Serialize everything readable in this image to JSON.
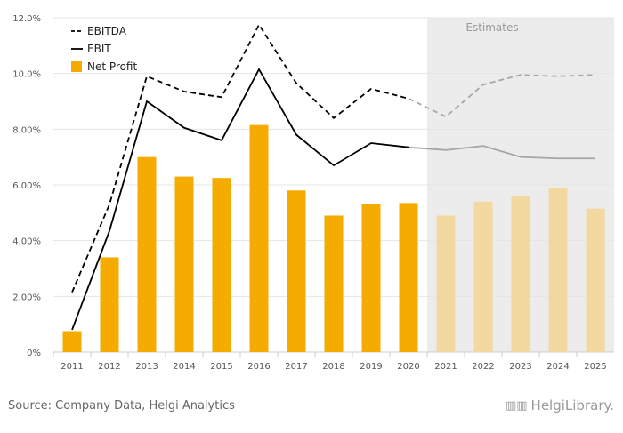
{
  "chart_data": {
    "type": "bar",
    "categories": [
      "2011",
      "2012",
      "2013",
      "2014",
      "2015",
      "2016",
      "2017",
      "2018",
      "2019",
      "2020",
      "2021",
      "2022",
      "2023",
      "2024",
      "2025"
    ],
    "estimate_from_index": 10,
    "estimates_label": "Estimates",
    "y_ticks": [
      {
        "value": 0,
        "label": "0%"
      },
      {
        "value": 2,
        "label": "2.00%"
      },
      {
        "value": 4,
        "label": "4.00%"
      },
      {
        "value": 6,
        "label": "6.00%"
      },
      {
        "value": 8,
        "label": "8.00%"
      },
      {
        "value": 10,
        "label": "10.0%"
      },
      {
        "value": 12,
        "label": "12.0%"
      }
    ],
    "ylim": [
      0,
      12
    ],
    "series": [
      {
        "name": "EBITDA",
        "kind": "line",
        "style": "dashed",
        "values": [
          2.15,
          5.3,
          9.9,
          9.35,
          9.15,
          11.75,
          9.65,
          8.4,
          9.45,
          9.1,
          8.45,
          9.6,
          9.95,
          9.9,
          9.95
        ]
      },
      {
        "name": "EBIT",
        "kind": "line",
        "style": "solid",
        "values": [
          0.8,
          4.35,
          9.0,
          8.05,
          7.6,
          10.15,
          7.8,
          6.7,
          7.5,
          7.35,
          7.25,
          7.4,
          7.0,
          6.95,
          6.95
        ]
      },
      {
        "name": "Net Profit",
        "kind": "bar",
        "values": [
          0.75,
          3.4,
          7.0,
          6.3,
          6.25,
          8.15,
          5.8,
          4.9,
          5.3,
          5.35,
          4.9,
          5.4,
          5.6,
          5.9,
          5.15
        ]
      }
    ],
    "legend": {
      "position": "top-left",
      "items": [
        "EBITDA",
        "EBIT",
        "Net Profit"
      ]
    },
    "grid": true,
    "colors": {
      "bar": "#f5ab00",
      "bar_estimate": "#f3d99f",
      "line": "#000000",
      "line_estimate": "#a6a6a6",
      "estimate_bg": "#ececec",
      "estimates_text": "#999999",
      "grid": "#e6e6e6",
      "axis_text": "#555555"
    }
  },
  "footer": {
    "source": "Source: Company Data, Helgi Analytics",
    "logo": "HelgiLibrary."
  }
}
